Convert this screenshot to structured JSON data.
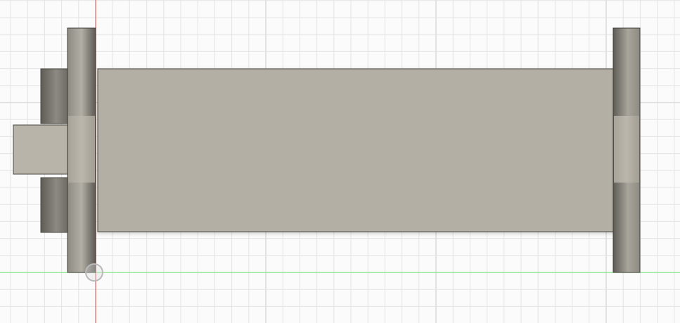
{
  "viewport": {
    "view": "front",
    "background_color": "#fbfbfb",
    "grid_color_minor": "#e4e4e4",
    "grid_color_major": "#d2d2d2",
    "x_axis_color": "#7fe37f",
    "y_axis_color": "#f06a6a"
  },
  "model": {
    "body_color": "#b3afa5",
    "flange_color": "#aaa69c",
    "edge_color": "#4a4842"
  },
  "icons": {
    "origin": "origin-point-icon"
  }
}
